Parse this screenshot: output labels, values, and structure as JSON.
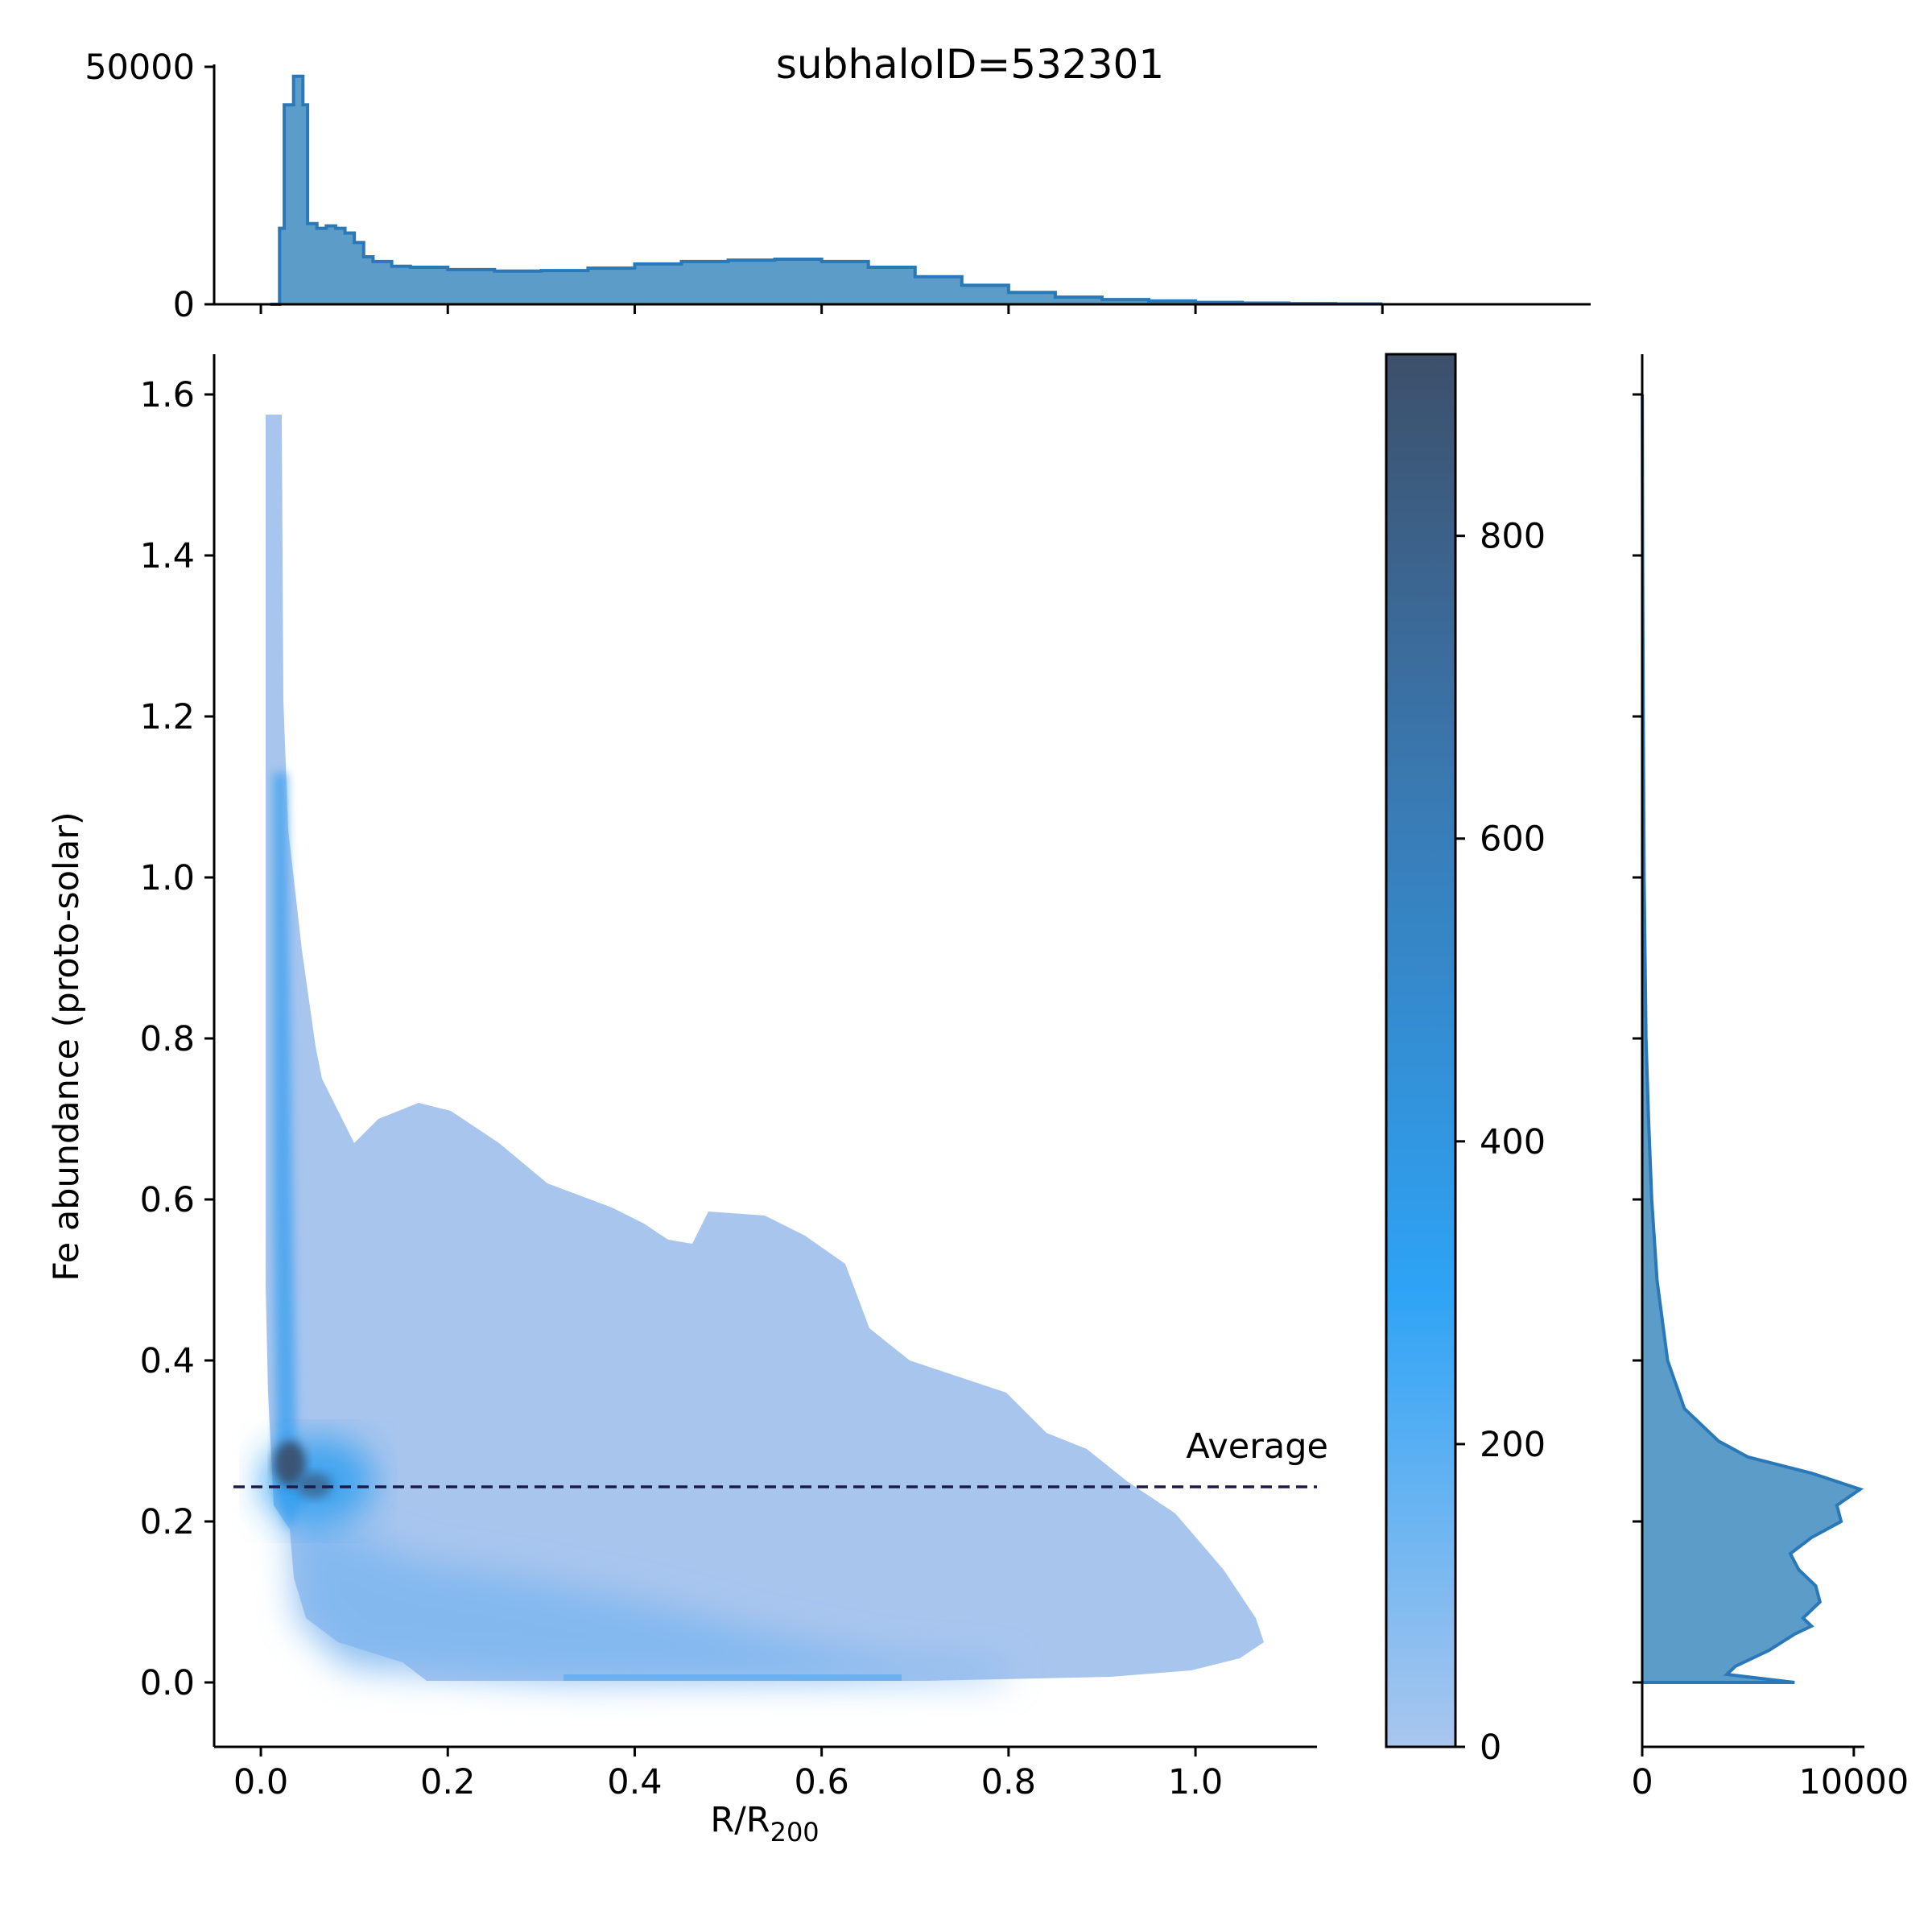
{
  "chart_data": {
    "type": "heatmap",
    "title": "subhaloID=532301",
    "xlabel_main": "R/R",
    "xlabel_sub": "200",
    "ylabel": "Fe abundance (proto-solar)",
    "xlim": [
      -0.05,
      1.13
    ],
    "ylim": [
      -0.08,
      1.65
    ],
    "x_ticks": [
      0.0,
      0.2,
      0.4,
      0.6,
      0.8,
      1.0
    ],
    "x_tick_labels": [
      "0.0",
      "0.2",
      "0.4",
      "0.6",
      "0.8",
      "1.0"
    ],
    "y_ticks": [
      0.0,
      0.2,
      0.4,
      0.6,
      0.8,
      1.0,
      1.2,
      1.4,
      1.6
    ],
    "y_tick_labels": [
      "0.0",
      "0.2",
      "0.4",
      "0.6",
      "0.8",
      "1.0",
      "1.2",
      "1.4",
      "1.6"
    ],
    "average_line": {
      "y": 0.243,
      "label": "Average",
      "color": "#1b1b4a"
    },
    "colorbar": {
      "range": [
        0,
        920
      ],
      "ticks": [
        0,
        200,
        400,
        600,
        800
      ],
      "tick_labels": [
        "0",
        "200",
        "400",
        "600",
        "800"
      ],
      "colors": [
        "#a9c6ee",
        "#2ea3f5",
        "#3a78b0",
        "#3d4f6a"
      ]
    },
    "top_histogram": {
      "ylim": [
        0,
        50000
      ],
      "y_ticks": [
        0,
        50000
      ],
      "y_tick_labels": [
        "0",
        "50000"
      ],
      "color": "#3a87c2",
      "x": [
        0.01,
        0.02,
        0.025,
        0.03,
        0.035,
        0.04,
        0.045,
        0.05,
        0.06,
        0.07,
        0.08,
        0.09,
        0.1,
        0.11,
        0.12,
        0.14,
        0.16,
        0.2,
        0.25,
        0.3,
        0.35,
        0.4,
        0.45,
        0.5,
        0.55,
        0.6,
        0.65,
        0.7,
        0.75,
        0.8,
        0.85,
        0.9,
        0.95,
        1.0,
        1.05,
        1.1,
        1.15,
        1.2
      ],
      "values": [
        0,
        16000,
        42000,
        42000,
        48000,
        48000,
        42000,
        17000,
        16000,
        16500,
        16000,
        15000,
        13000,
        10000,
        9000,
        8000,
        7800,
        7300,
        7000,
        7100,
        7600,
        8500,
        9000,
        9300,
        9500,
        9000,
        7800,
        5800,
        4000,
        2500,
        1500,
        1000,
        700,
        400,
        250,
        150,
        80,
        0
      ]
    },
    "right_histogram": {
      "xlim": [
        0,
        10500
      ],
      "x_ticks": [
        0,
        10000
      ],
      "x_tick_labels": [
        "0",
        "10000"
      ],
      "color": "#3a87c2",
      "y": [
        0.0,
        0.01,
        0.02,
        0.04,
        0.06,
        0.07,
        0.08,
        0.1,
        0.12,
        0.14,
        0.16,
        0.18,
        0.2,
        0.22,
        0.24,
        0.26,
        0.28,
        0.3,
        0.34,
        0.4,
        0.5,
        0.6,
        0.7,
        0.8,
        1.0,
        1.2,
        1.4,
        1.6
      ],
      "values": [
        7200,
        4000,
        4400,
        6000,
        7200,
        8000,
        7600,
        8400,
        8200,
        7400,
        7000,
        8000,
        9400,
        9200,
        10300,
        8000,
        5000,
        3600,
        2000,
        1200,
        700,
        450,
        300,
        180,
        90,
        50,
        20,
        5
      ]
    },
    "heatmap_cells": [
      {
        "x": 0.028,
        "y": 0.27,
        "count": 900
      },
      {
        "x": 0.045,
        "y": 0.24,
        "count": 750
      },
      {
        "x": 0.06,
        "y": 0.24,
        "count": 520
      },
      {
        "x": 0.02,
        "y": 0.35,
        "count": 420
      },
      {
        "x": 0.02,
        "y": 0.5,
        "count": 300
      },
      {
        "x": 0.02,
        "y": 0.7,
        "count": 260
      },
      {
        "x": 0.02,
        "y": 0.9,
        "count": 180
      },
      {
        "x": 0.08,
        "y": 0.2,
        "count": 320
      },
      {
        "x": 0.1,
        "y": 0.18,
        "count": 260
      },
      {
        "x": 0.2,
        "y": 0.15,
        "count": 230
      },
      {
        "x": 0.3,
        "y": 0.14,
        "count": 220
      },
      {
        "x": 0.4,
        "y": 0.1,
        "count": 210
      },
      {
        "x": 0.5,
        "y": 0.08,
        "count": 190
      },
      {
        "x": 0.6,
        "y": 0.06,
        "count": 160
      },
      {
        "x": 0.7,
        "y": 0.05,
        "count": 120
      },
      {
        "x": 0.55,
        "y": 0.0,
        "count": 250
      },
      {
        "x": 0.15,
        "y": 0.3,
        "count": 90
      },
      {
        "x": 0.3,
        "y": 0.3,
        "count": 70
      },
      {
        "x": 0.5,
        "y": 0.3,
        "count": 60
      },
      {
        "x": 0.8,
        "y": 0.15,
        "count": 60
      },
      {
        "x": 0.9,
        "y": 0.1,
        "count": 50
      }
    ]
  }
}
